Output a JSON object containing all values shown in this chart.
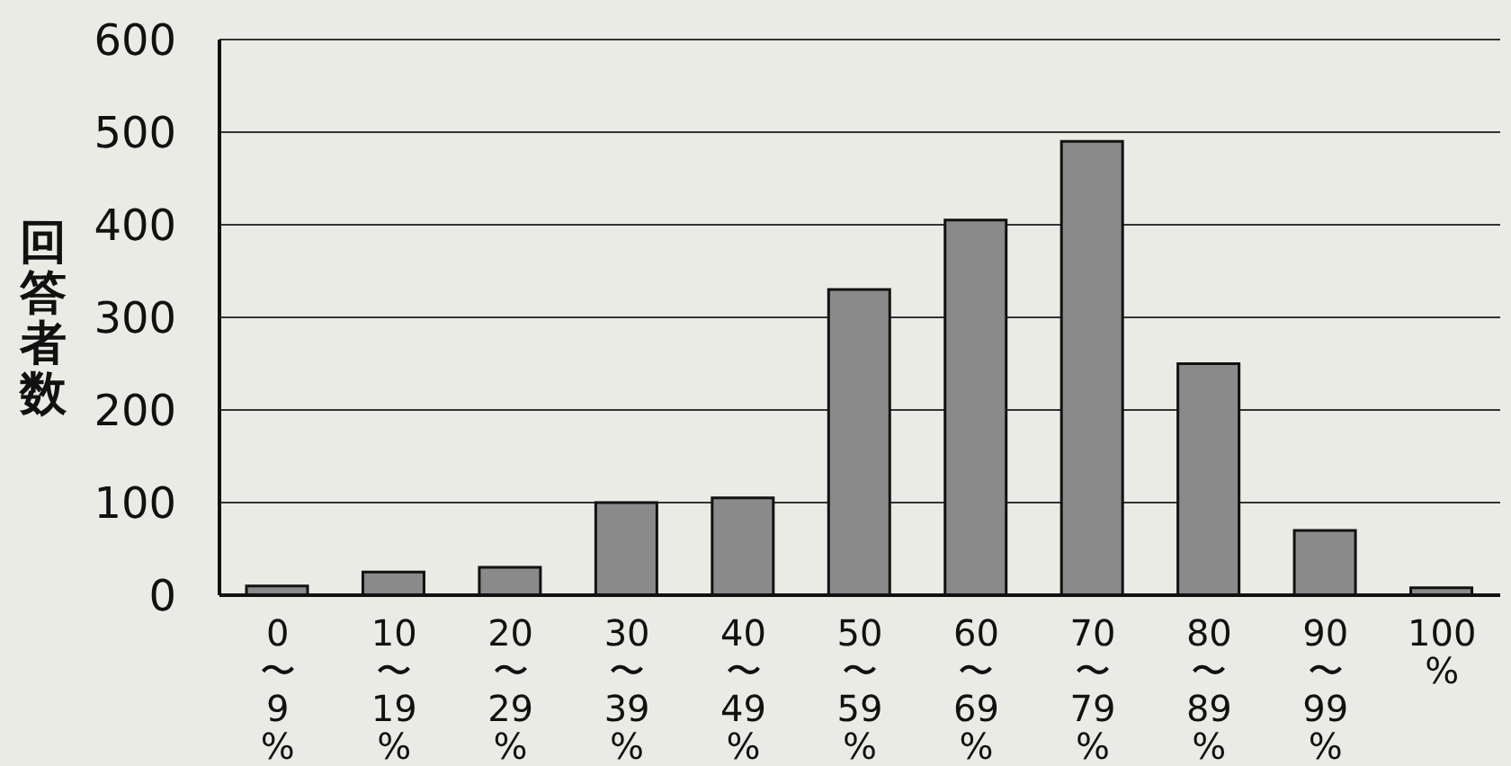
{
  "chart_data": {
    "type": "bar",
    "ylabel": "回答者数",
    "categories": [
      "0〜9%",
      "10〜19%",
      "20〜29%",
      "30〜39%",
      "40〜49%",
      "50〜59%",
      "60〜69%",
      "70〜79%",
      "80〜89%",
      "90〜99%",
      "100%"
    ],
    "values": [
      10,
      25,
      30,
      100,
      105,
      330,
      405,
      490,
      250,
      70,
      8
    ],
    "color": "#8a8a8a",
    "ylim": [
      0,
      600
    ],
    "yticks": [
      0,
      100,
      200,
      300,
      400,
      500,
      600
    ],
    "grid": "y"
  }
}
